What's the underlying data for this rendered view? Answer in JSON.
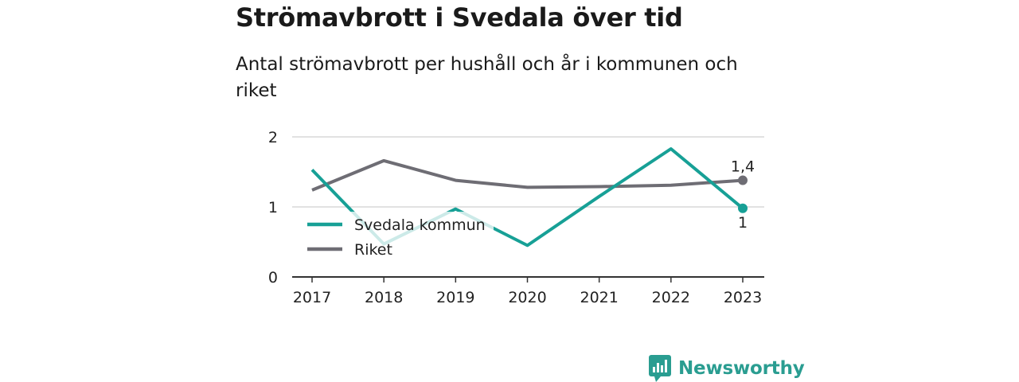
{
  "title": "Strömavbrott i Svedala över tid",
  "subtitle": "Antal strömavbrott per hushåll och år i kommunen och riket",
  "brand": {
    "name": "Newsworthy",
    "color": "#2a9d91"
  },
  "chart_data": {
    "type": "line",
    "title": "Strömavbrott i Svedala över tid",
    "subtitle": "Antal strömavbrott per hushåll och år i kommunen och riket",
    "x": [
      "2017",
      "2018",
      "2019",
      "2020",
      "2021",
      "2022",
      "2023"
    ],
    "ylim": [
      0,
      2
    ],
    "yticks": [
      0,
      1,
      2
    ],
    "grid": true,
    "legend_position": "bottom-left",
    "series": [
      {
        "name": "Svedala kommun",
        "color": "#17a096",
        "values": [
          1.53,
          0.47,
          0.97,
          0.45,
          1.15,
          1.83,
          0.98
        ],
        "end_label": "1"
      },
      {
        "name": "Riket",
        "color": "#6e6d74",
        "values": [
          1.24,
          1.66,
          1.38,
          1.28,
          1.29,
          1.31,
          1.38
        ],
        "end_label": "1,4"
      }
    ]
  }
}
